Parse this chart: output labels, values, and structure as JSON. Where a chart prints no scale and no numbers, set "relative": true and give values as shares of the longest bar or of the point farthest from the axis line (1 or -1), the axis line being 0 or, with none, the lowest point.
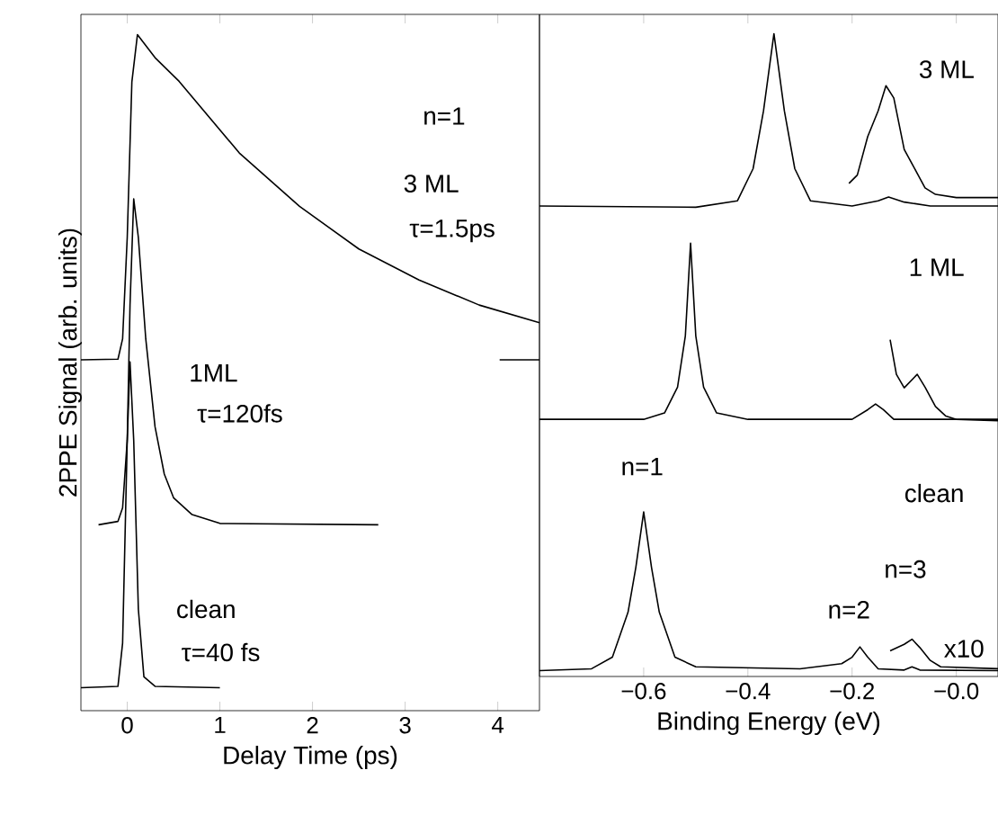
{
  "chart_data": [
    {
      "type": "line",
      "relative": true,
      "tick_labels": "x",
      "xlabel": "Delay Time (ps)",
      "ylabel": "2PPE Signal (arb. units)",
      "xlim": [
        -0.5,
        4.45
      ],
      "xticks": [
        0,
        1,
        2,
        3,
        4
      ],
      "series": [
        {
          "color": "#000000",
          "x": [
            -0.5,
            -0.1,
            -0.05,
            0,
            0.03,
            0.07,
            0.12,
            0.18,
            0.3,
            1.0
          ],
          "values": [
            0.034,
            0.036,
            0.1,
            0.4,
            0.516,
            0.4,
            0.15,
            0.05,
            0.036,
            0.034
          ]
        },
        {
          "color": "#000000",
          "x": [
            -0.31,
            -0.1,
            -0.05,
            0,
            0.03,
            0.07,
            0.12,
            0.2,
            0.3,
            0.4,
            0.5,
            0.7,
            1.0,
            2.71
          ],
          "values": [
            0.275,
            0.28,
            0.3,
            0.4,
            0.6,
            0.757,
            0.7,
            0.55,
            0.42,
            0.35,
            0.315,
            0.29,
            0.277,
            0.275
          ]
        },
        {
          "color": "#000000",
          "x": [
            -0.5,
            -0.1,
            -0.05,
            0,
            0.05,
            0.11,
            0.3,
            0.56,
            1.21,
            1.86,
            2.5,
            3.15,
            3.8,
            4.45
          ],
          "values": [
            0.519,
            0.52,
            0.55,
            0.7,
            0.93,
            1.0,
            0.966,
            0.931,
            0.825,
            0.746,
            0.683,
            0.637,
            0.6,
            0.574
          ]
        },
        {
          "color": "#000000",
          "x": [
            4.02,
            4.45
          ],
          "values": [
            0.519,
            0.519
          ]
        }
      ],
      "annotations": [
        "n=1",
        "3 ML",
        "τ=1.5ps",
        "1ML",
        "τ=120fs",
        "clean",
        "τ=40 fs"
      ]
    },
    {
      "type": "line",
      "relative": true,
      "tick_labels": "x",
      "xlabel": "Binding Energy (eV)",
      "xlim": [
        -0.8,
        0.08
      ],
      "xticks": [
        {
          "value": -0.6,
          "label": "−0.6"
        },
        {
          "value": -0.4,
          "label": "−0.4"
        },
        {
          "value": -0.2,
          "label": "−0.2"
        },
        {
          "value": 0,
          "label": "−0.0"
        }
      ],
      "series": [
        {
          "color": "#000000",
          "x": [
            -0.8,
            -0.7,
            -0.66,
            -0.63,
            -0.615,
            -0.6,
            -0.585,
            -0.57,
            -0.54,
            -0.5,
            -0.3,
            -0.22,
            -0.2,
            -0.185,
            -0.17,
            -0.15,
            -0.1,
            -0.085,
            -0.07,
            0.08
          ],
          "values": [
            0.009,
            0.012,
            0.03,
            0.1,
            0.17,
            0.256,
            0.17,
            0.1,
            0.03,
            0.015,
            0.012,
            0.02,
            0.03,
            0.046,
            0.03,
            0.012,
            0.01,
            0.015,
            0.01,
            0.009
          ]
        },
        {
          "color": "#000000",
          "x": [
            -0.127,
            -0.1,
            -0.085,
            -0.07,
            -0.05,
            -0.03,
            0.08
          ],
          "values": [
            0.04,
            0.05,
            0.058,
            0.045,
            0.025,
            0.015,
            0.012
          ]
        },
        {
          "color": "#000000",
          "x": [
            -0.8,
            -0.6,
            -0.56,
            -0.535,
            -0.52,
            -0.51,
            -0.5,
            -0.485,
            -0.46,
            -0.4,
            -0.2,
            -0.17,
            -0.155,
            -0.14,
            -0.12,
            0.08
          ],
          "values": [
            0.4,
            0.4,
            0.41,
            0.45,
            0.53,
            0.674,
            0.53,
            0.45,
            0.41,
            0.4,
            0.4,
            0.415,
            0.424,
            0.415,
            0.4,
            0.4
          ]
        },
        {
          "color": "#000000",
          "x": [
            -0.127,
            -0.115,
            -0.1,
            -0.075,
            -0.06,
            -0.04,
            -0.02,
            0.0,
            0.08
          ],
          "values": [
            0.524,
            0.47,
            0.449,
            0.47,
            0.45,
            0.42,
            0.405,
            0.4,
            0.398
          ]
        },
        {
          "color": "#000000",
          "x": [
            -0.8,
            -0.5,
            -0.42,
            -0.39,
            -0.37,
            -0.35,
            -0.33,
            -0.31,
            -0.28,
            -0.2,
            -0.15,
            -0.13,
            -0.1,
            -0.05,
            0.08
          ],
          "values": [
            0.732,
            0.73,
            0.74,
            0.79,
            0.88,
            1.0,
            0.88,
            0.79,
            0.74,
            0.732,
            0.74,
            0.746,
            0.738,
            0.732,
            0.732
          ]
        },
        {
          "color": "#000000",
          "x": [
            -0.206,
            -0.19,
            -0.17,
            -0.15,
            -0.135,
            -0.12,
            -0.1,
            -0.08,
            -0.06,
            -0.04,
            0.0,
            0.08
          ],
          "values": [
            0.767,
            0.78,
            0.84,
            0.88,
            0.919,
            0.9,
            0.82,
            0.79,
            0.76,
            0.75,
            0.745,
            0.745
          ]
        }
      ],
      "annotations": [
        "3 ML",
        "1 ML",
        "clean",
        "n=1",
        "n=2",
        "n=3",
        "x10"
      ]
    }
  ]
}
